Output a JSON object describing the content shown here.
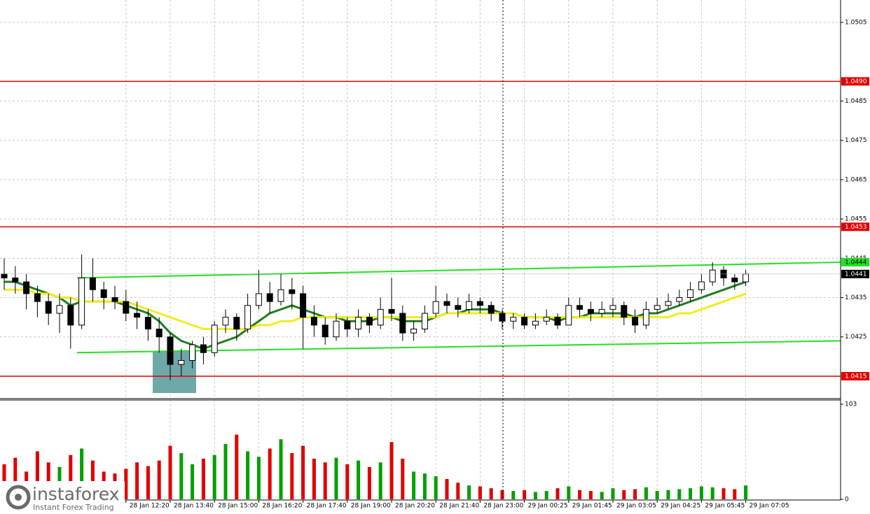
{
  "chart_data": {
    "type": "candlestick",
    "categories": [
      null,
      null,
      null,
      null,
      null,
      null,
      null,
      null,
      null,
      null,
      null,
      "28 Jan 12:20",
      null,
      null,
      null,
      "28 Jan 13:40",
      null,
      null,
      null,
      "28 Jan 15:00",
      null,
      null,
      null,
      "28 Jan 16:20",
      null,
      null,
      null,
      "28 Jan 17:40",
      null,
      null,
      null,
      "28 Jan 19:00",
      null,
      null,
      null,
      "28 Jan 20:20",
      null,
      null,
      null,
      "28 Jan 21:40",
      null,
      null,
      null,
      "28 Jan 23:00",
      null,
      null,
      null,
      "29 Jan 00:25",
      null,
      null,
      null,
      "29 Jan 01:45",
      null,
      null,
      null,
      "29 Jan 03:05",
      null,
      null,
      null,
      "29 Jan 04:25",
      null,
      null,
      null,
      "29 Jan 05:45",
      null,
      null,
      null,
      "29 Jan 07:05"
    ],
    "open": [
      1.0441,
      1.044,
      1.0439,
      1.0436,
      1.0434,
      1.0431,
      1.0433,
      1.0428,
      1.044,
      1.0437,
      1.0435,
      1.0434,
      1.0431,
      1.043,
      1.0427,
      1.0425,
      1.0418,
      1.0419,
      1.0423,
      1.0421,
      1.0428,
      1.043,
      1.0427,
      1.0433,
      1.0436,
      1.0434,
      1.0437,
      1.0436,
      1.043,
      1.0428,
      1.0425,
      1.0429,
      1.0427,
      1.043,
      1.0428,
      1.0432,
      1.0431,
      1.0426,
      1.0427,
      1.0431,
      1.0434,
      1.0433,
      1.0432,
      1.0434,
      1.0433,
      1.0431,
      1.0429,
      1.043,
      1.0428,
      1.0429,
      1.043,
      1.0428,
      1.0433,
      1.0432,
      1.0431,
      1.0432,
      1.0433,
      1.043,
      1.0428,
      1.0432,
      1.0433,
      1.0434,
      1.0435,
      1.0437,
      1.0439,
      1.0442,
      1.044,
      1.0439
    ],
    "high": [
      1.0445,
      1.0443,
      1.0441,
      1.0438,
      1.0436,
      1.0436,
      1.0435,
      1.0446,
      1.0445,
      1.0439,
      1.0438,
      1.0437,
      1.0434,
      1.0432,
      1.043,
      1.0426,
      1.0422,
      1.0424,
      1.0425,
      1.0429,
      1.0432,
      1.0431,
      1.0436,
      1.0442,
      1.0439,
      1.0441,
      1.044,
      1.0438,
      1.0433,
      1.043,
      1.0431,
      1.043,
      1.0432,
      1.0431,
      1.0435,
      1.044,
      1.0433,
      1.0429,
      1.0433,
      1.0438,
      1.0436,
      1.0435,
      1.0436,
      1.0435,
      1.0434,
      1.0432,
      1.0431,
      1.0431,
      1.0431,
      1.0432,
      1.0431,
      1.0435,
      1.0435,
      1.0434,
      1.0434,
      1.0435,
      1.0434,
      1.0432,
      1.0434,
      1.0435,
      1.0436,
      1.0437,
      1.0439,
      1.0441,
      1.0444,
      1.0443,
      1.0441,
      1.0442
    ],
    "low": [
      1.0437,
      1.0436,
      1.0432,
      1.043,
      1.0428,
      1.0426,
      1.0422,
      1.0427,
      1.0434,
      1.0432,
      1.0432,
      1.0429,
      1.0427,
      1.0424,
      1.0421,
      1.0414,
      1.0415,
      1.0417,
      1.0418,
      1.042,
      1.0426,
      1.0424,
      1.0426,
      1.0432,
      1.0431,
      1.0433,
      1.0432,
      1.0422,
      1.0425,
      1.0423,
      1.0424,
      1.0425,
      1.0425,
      1.0426,
      1.0427,
      1.0429,
      1.0424,
      1.0424,
      1.0426,
      1.043,
      1.0431,
      1.043,
      1.0431,
      1.0431,
      1.0429,
      1.0427,
      1.0427,
      1.0427,
      1.0427,
      1.0428,
      1.0427,
      1.0428,
      1.043,
      1.0429,
      1.043,
      1.043,
      1.0428,
      1.0426,
      1.0427,
      1.0431,
      1.0432,
      1.0433,
      1.0434,
      1.0436,
      1.0438,
      1.0438,
      1.0437,
      1.0438
    ],
    "close": [
      1.044,
      1.0439,
      1.0436,
      1.0434,
      1.0431,
      1.0433,
      1.0428,
      1.044,
      1.0437,
      1.0435,
      1.0434,
      1.0431,
      1.043,
      1.0427,
      1.0425,
      1.0418,
      1.0419,
      1.0423,
      1.0421,
      1.0428,
      1.043,
      1.0427,
      1.0433,
      1.0436,
      1.0434,
      1.0437,
      1.0436,
      1.043,
      1.0428,
      1.0425,
      1.0429,
      1.0427,
      1.043,
      1.0428,
      1.0432,
      1.0431,
      1.0426,
      1.0427,
      1.0431,
      1.0434,
      1.0433,
      1.0432,
      1.0434,
      1.0433,
      1.0431,
      1.0429,
      1.043,
      1.0428,
      1.0429,
      1.043,
      1.0428,
      1.0433,
      1.0432,
      1.0431,
      1.0432,
      1.0433,
      1.043,
      1.0428,
      1.0432,
      1.0433,
      1.0434,
      1.0435,
      1.0437,
      1.0439,
      1.0442,
      1.044,
      1.0439,
      1.0441
    ],
    "volume": [
      38,
      45,
      30,
      52,
      40,
      35,
      48,
      55,
      42,
      30,
      28,
      33,
      40,
      36,
      42,
      58,
      50,
      38,
      44,
      48,
      60,
      70,
      52,
      46,
      55,
      65,
      50,
      58,
      44,
      40,
      45,
      38,
      42,
      35,
      40,
      62,
      44,
      30,
      28,
      25,
      22,
      18,
      15,
      14,
      12,
      10,
      9,
      10,
      8,
      9,
      12,
      14,
      10,
      9,
      8,
      12,
      10,
      11,
      13,
      9,
      10,
      11,
      12,
      14,
      13,
      12,
      11,
      15
    ],
    "up_color": "#00a000",
    "down_color": "#e00000",
    "ma": [
      {
        "color": "#1e7d1e",
        "values": [
          1.0439,
          1.0439,
          1.0438,
          1.0437,
          1.0436,
          1.0435,
          1.0433,
          1.0434,
          1.0434,
          1.0434,
          1.0434,
          1.0433,
          1.0432,
          1.0431,
          1.0429,
          1.0426,
          1.0424,
          1.0423,
          1.0422,
          1.0423,
          1.0424,
          1.0425,
          1.0427,
          1.0429,
          1.0431,
          1.0432,
          1.0433,
          1.0432,
          1.0431,
          1.043,
          1.043,
          1.0429,
          1.0429,
          1.0429,
          1.043,
          1.043,
          1.0429,
          1.0429,
          1.0429,
          1.043,
          1.0431,
          1.0431,
          1.0432,
          1.0432,
          1.0432,
          1.0431,
          1.0431,
          1.043,
          1.043,
          1.043,
          1.0429,
          1.043,
          1.043,
          1.0431,
          1.0431,
          1.0431,
          1.0431,
          1.043,
          1.0431,
          1.0431,
          1.0432,
          1.0433,
          1.0434,
          1.0435,
          1.0436,
          1.0437,
          1.0438,
          1.0439
        ]
      },
      {
        "color": "#f2ec1c",
        "values": [
          1.0437,
          1.0437,
          1.0437,
          1.0436,
          1.0436,
          1.0435,
          1.0435,
          1.0434,
          1.0434,
          1.0434,
          1.0434,
          1.0434,
          1.0433,
          1.0432,
          1.0431,
          1.043,
          1.0429,
          1.0428,
          1.0427,
          1.0427,
          1.0427,
          1.0427,
          1.0427,
          1.0428,
          1.0428,
          1.0429,
          1.0429,
          1.043,
          1.043,
          1.043,
          1.043,
          1.043,
          1.043,
          1.043,
          1.043,
          1.043,
          1.043,
          1.043,
          1.043,
          1.043,
          1.0431,
          1.0431,
          1.0431,
          1.0431,
          1.0431,
          1.0431,
          1.0431,
          1.043,
          1.043,
          1.043,
          1.043,
          1.043,
          1.043,
          1.043,
          1.043,
          1.043,
          1.043,
          1.043,
          1.043,
          1.043,
          1.043,
          1.0431,
          1.0431,
          1.0432,
          1.0433,
          1.0434,
          1.0435,
          1.0436
        ]
      }
    ],
    "levels": [
      {
        "value": 1.049,
        "label": "1.0490"
      },
      1.0453,
      1.0415
    ],
    "level_color": "#e00000",
    "trendlines": [
      {
        "start": 1.044,
        "end": 1.0444
      },
      {
        "start": 1.0421,
        "end": 1.0424
      }
    ],
    "trendline_color": "#22e022",
    "ylim": [
      1.04093,
      1.05107
    ],
    "yticks": [
      1.0505,
      1.0485,
      1.0475,
      1.0465,
      1.0455,
      1.0445,
      1.0435,
      1.0425
    ],
    "volume_ylim": [
      0,
      103
    ],
    "volume_yticks": [
      0,
      103
    ],
    "grid": true
  },
  "logo": {
    "name": "instaforex",
    "tagline": "Instant Forex Trading"
  }
}
